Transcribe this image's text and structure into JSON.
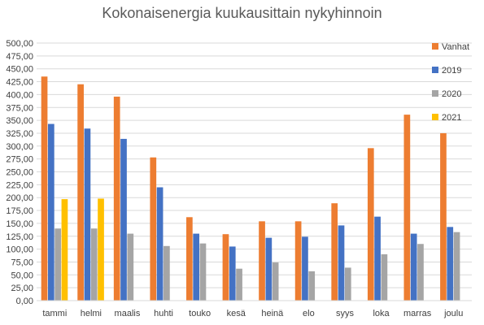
{
  "chart_data": {
    "type": "bar",
    "title": "Kokonaisenergia kuukausittain nykyhinnoin",
    "xlabel": "",
    "ylabel": "",
    "ylim": [
      0,
      500
    ],
    "ytick_step": 25,
    "ytick_format": "comma2",
    "grid": true,
    "legend_position": "right",
    "categories": [
      "tammi",
      "helmi",
      "maalis",
      "huhti",
      "touko",
      "kesä",
      "heinä",
      "elo",
      "syys",
      "loka",
      "marras",
      "joulu"
    ],
    "series": [
      {
        "name": "Vanhat",
        "color": "#ED7D31",
        "values": [
          435,
          420,
          396,
          278,
          162,
          129,
          154,
          154,
          189,
          296,
          361,
          325
        ]
      },
      {
        "name": "2019",
        "color": "#4472C4",
        "values": [
          343,
          334,
          314,
          220,
          130,
          105,
          122,
          124,
          146,
          163,
          130,
          143
        ]
      },
      {
        "name": "2020",
        "color": "#A5A5A5",
        "values": [
          140,
          140,
          130,
          106,
          111,
          62,
          74,
          57,
          64,
          90,
          110,
          133
        ]
      },
      {
        "name": "2021",
        "color": "#FFC000",
        "values": [
          197,
          198,
          null,
          null,
          null,
          null,
          null,
          null,
          null,
          null,
          null,
          null
        ]
      }
    ]
  }
}
